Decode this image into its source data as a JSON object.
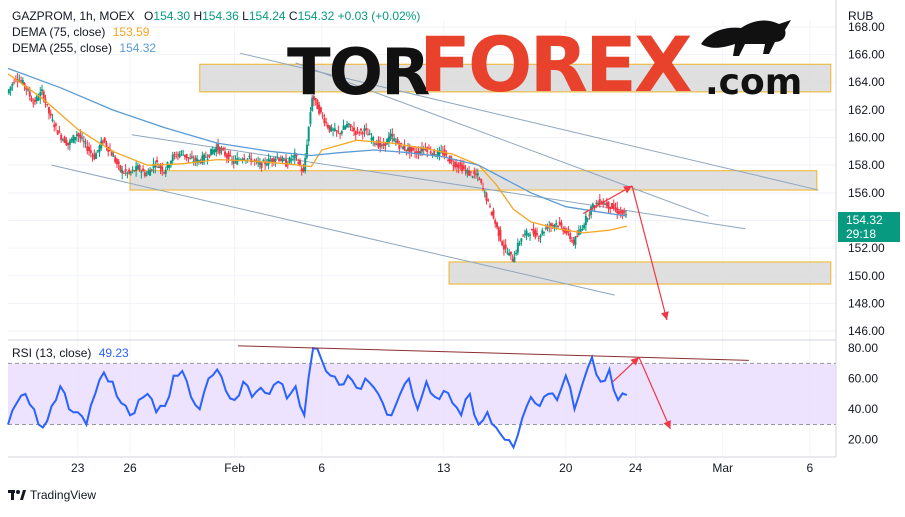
{
  "main_legend": {
    "symbol": "GAZPROM, 1h, MOEX",
    "o_label": "O",
    "o": "154.30",
    "h_label": "H",
    "h": "154.36",
    "l_label": "L",
    "l": "154.24",
    "c_label": "C",
    "c": "154.32",
    "change": "+0.03 (+0.02%)",
    "dema75_label": "DEMA (75, close)",
    "dema75": "153.59",
    "dema255_label": "DEMA (255, close)",
    "dema255": "154.32"
  },
  "rsi_legend": {
    "label": "RSI (13, close)",
    "value": "49.23"
  },
  "price_tag": {
    "price": "154.32",
    "countdown": "29:18"
  },
  "currency": "RUB",
  "watermark": "TORFOREX.com",
  "brand": "TradingView",
  "colors": {
    "up": "#089981",
    "down": "#f23645",
    "dema75": "#f5a623",
    "dema255": "#5b9bd5",
    "rsi": "#2962ff",
    "rsi_band": "#e9dcff",
    "zone": "#d9d9d9",
    "zone_border": "#f0b429",
    "trend": "#8fa6bd",
    "arrow": "#f23645"
  },
  "chart_data": [
    {
      "type": "line",
      "title": "",
      "ylim": [
        145.5,
        168.5
      ],
      "y_ticks": [
        146,
        148,
        150,
        152,
        154,
        156,
        158,
        160,
        162,
        164,
        166,
        168
      ],
      "y_tick_labels": [
        "146.00",
        "148.00",
        "150.00",
        "152.00",
        "154.00",
        "156.00",
        "158.00",
        "160.00",
        "162.00",
        "164.00",
        "166.00",
        "168.00"
      ],
      "x_ticks": [
        {
          "label": "23",
          "day": 4
        },
        {
          "label": "26",
          "day": 7
        },
        {
          "label": "Feb",
          "day": 13
        },
        {
          "label": "6",
          "day": 18
        },
        {
          "label": "13",
          "day": 25
        },
        {
          "label": "20",
          "day": 32
        },
        {
          "label": "24",
          "day": 36
        },
        {
          "label": "Mar",
          "day": 41
        },
        {
          "label": "6",
          "day": 46
        }
      ],
      "xlim": [
        0,
        47.5
      ],
      "price_path": [
        [
          0,
          163.2
        ],
        [
          0.5,
          164.4
        ],
        [
          1,
          163.8
        ],
        [
          1.5,
          162.5
        ],
        [
          2,
          163.3
        ],
        [
          2.5,
          161.4
        ],
        [
          3,
          160.2
        ],
        [
          3.5,
          159.5
        ],
        [
          4,
          160.3
        ],
        [
          4.5,
          159.4
        ],
        [
          5,
          158.6
        ],
        [
          5.5,
          159.8
        ],
        [
          6,
          158.8
        ],
        [
          6.5,
          157.6
        ],
        [
          7,
          157.4
        ],
        [
          7.5,
          157.8
        ],
        [
          8,
          157.3
        ],
        [
          8.5,
          158.2
        ],
        [
          9,
          157.6
        ],
        [
          9.5,
          158.6
        ],
        [
          10,
          158.9
        ],
        [
          10.5,
          158.4
        ],
        [
          11,
          158.3
        ],
        [
          11.5,
          158.7
        ],
        [
          12,
          159.3
        ],
        [
          12.5,
          158.8
        ],
        [
          13,
          158.2
        ],
        [
          13.5,
          158.6
        ],
        [
          14,
          158.4
        ],
        [
          14.5,
          158.0
        ],
        [
          15,
          158.3
        ],
        [
          15.5,
          158.6
        ],
        [
          16,
          158.1
        ],
        [
          16.5,
          158.7
        ],
        [
          17,
          157.4
        ],
        [
          17.5,
          163.0
        ],
        [
          18,
          161.7
        ],
        [
          18.5,
          160.6
        ],
        [
          19,
          160.3
        ],
        [
          19.5,
          160.9
        ],
        [
          20,
          160.4
        ],
        [
          20.5,
          160.5
        ],
        [
          21,
          159.8
        ],
        [
          21.5,
          159.3
        ],
        [
          22,
          160.1
        ],
        [
          22.5,
          159.4
        ],
        [
          23,
          159.1
        ],
        [
          23.5,
          158.9
        ],
        [
          24,
          159.3
        ],
        [
          24.5,
          158.8
        ],
        [
          25,
          158.9
        ],
        [
          25.5,
          158.2
        ],
        [
          26,
          157.9
        ],
        [
          26.5,
          157.4
        ],
        [
          27,
          157.2
        ],
        [
          27.5,
          155.6
        ],
        [
          28,
          153.8
        ],
        [
          28.5,
          152.0
        ],
        [
          29,
          151.2
        ],
        [
          29.5,
          152.8
        ],
        [
          30,
          153.2
        ],
        [
          30.5,
          152.9
        ],
        [
          31,
          153.6
        ],
        [
          31.5,
          153.8
        ],
        [
          32,
          153.3
        ],
        [
          32.5,
          152.4
        ],
        [
          33,
          153.6
        ],
        [
          33.5,
          154.9
        ],
        [
          34,
          155.4
        ],
        [
          34.5,
          155.1
        ],
        [
          35,
          154.7
        ],
        [
          35.5,
          154.32
        ]
      ],
      "series": [
        {
          "name": "DEMA (75, close)",
          "values": [
            [
              0,
              164.6
            ],
            [
              2,
              162.8
            ],
            [
              4,
              160.6
            ],
            [
              6,
              159.0
            ],
            [
              8,
              158.0
            ],
            [
              10,
              158.1
            ],
            [
              12,
              158.4
            ],
            [
              14,
              158.3
            ],
            [
              16,
              158.1
            ],
            [
              17.4,
              157.9
            ],
            [
              18,
              159.1
            ],
            [
              20,
              159.8
            ],
            [
              22,
              159.6
            ],
            [
              24,
              159.2
            ],
            [
              25.5,
              158.8
            ],
            [
              27,
              158.0
            ],
            [
              28,
              156.6
            ],
            [
              29,
              154.8
            ],
            [
              30,
              153.9
            ],
            [
              31.5,
              153.4
            ],
            [
              33,
              153.1
            ],
            [
              34.5,
              153.3
            ],
            [
              35.5,
              153.59
            ]
          ]
        },
        {
          "name": "DEMA (255, close)",
          "values": [
            [
              0,
              165.0
            ],
            [
              3,
              163.6
            ],
            [
              6,
              162.0
            ],
            [
              9,
              160.7
            ],
            [
              12,
              159.6
            ],
            [
              15,
              159.0
            ],
            [
              17.4,
              158.7
            ],
            [
              19,
              158.9
            ],
            [
              21,
              159.1
            ],
            [
              23,
              158.9
            ],
            [
              25,
              158.6
            ],
            [
              27,
              158.0
            ],
            [
              28.5,
              157.0
            ],
            [
              30,
              156.0
            ],
            [
              32,
              155.0
            ],
            [
              34,
              154.6
            ],
            [
              35.5,
              154.32
            ]
          ]
        }
      ],
      "zones": [
        {
          "x": [
            11,
            47.2
          ],
          "y": [
            163.3,
            165.3
          ]
        },
        {
          "x": [
            7,
            46.4
          ],
          "y": [
            156.2,
            157.6
          ]
        },
        {
          "x": [
            25.3,
            47.2
          ],
          "y": [
            149.4,
            151.0
          ]
        }
      ],
      "trend_lines": [
        [
          [
            2.5,
            158.0
          ],
          [
            34.8,
            148.6
          ]
        ],
        [
          [
            7.1,
            160.2
          ],
          [
            42.3,
            153.4
          ]
        ],
        [
          [
            13.3,
            166.1
          ],
          [
            46.5,
            156.2
          ]
        ],
        [
          [
            16.5,
            165.4
          ],
          [
            40.2,
            154.3
          ]
        ]
      ],
      "arrow_path": [
        [
          33.0,
          154.5
        ],
        [
          35.8,
          156.5
        ],
        [
          37.8,
          146.8
        ]
      ]
    },
    {
      "type": "line",
      "title": "",
      "ylim": [
        10,
        84
      ],
      "y_ticks": [
        20,
        40,
        60,
        80
      ],
      "y_tick_labels": [
        "20.00",
        "40.00",
        "60.00",
        "80.00"
      ],
      "band": [
        30,
        70
      ],
      "xlim": [
        0,
        47.5
      ],
      "series": [
        {
          "name": "RSI (13, close)",
          "values": [
            [
              0,
              30
            ],
            [
              0.5,
              44
            ],
            [
              1,
              50
            ],
            [
              1.5,
              40
            ],
            [
              2,
              28
            ],
            [
              2.5,
              42
            ],
            [
              3,
              55
            ],
            [
              3.5,
              40
            ],
            [
              4,
              38
            ],
            [
              4.5,
              30
            ],
            [
              5,
              50
            ],
            [
              5.5,
              64
            ],
            [
              6,
              58
            ],
            [
              6.5,
              44
            ],
            [
              7,
              36
            ],
            [
              7.5,
              46
            ],
            [
              8,
              50
            ],
            [
              8.5,
              38
            ],
            [
              9,
              42
            ],
            [
              9.5,
              62
            ],
            [
              10,
              65
            ],
            [
              10.5,
              48
            ],
            [
              11,
              40
            ],
            [
              11.5,
              60
            ],
            [
              12,
              66
            ],
            [
              12.5,
              52
            ],
            [
              13,
              46
            ],
            [
              13.5,
              58
            ],
            [
              14,
              48
            ],
            [
              14.5,
              54
            ],
            [
              15,
              50
            ],
            [
              15.5,
              58
            ],
            [
              16,
              47
            ],
            [
              16.5,
              55
            ],
            [
              17,
              36
            ],
            [
              17.5,
              80
            ],
            [
              18,
              72
            ],
            [
              18.5,
              62
            ],
            [
              19,
              56
            ],
            [
              19.5,
              62
            ],
            [
              20,
              54
            ],
            [
              20.5,
              60
            ],
            [
              21,
              54
            ],
            [
              21.5,
              44
            ],
            [
              22,
              36
            ],
            [
              22.5,
              50
            ],
            [
              23,
              60
            ],
            [
              23.5,
              40
            ],
            [
              24,
              58
            ],
            [
              24.5,
              48
            ],
            [
              25,
              52
            ],
            [
              25.5,
              44
            ],
            [
              26,
              36
            ],
            [
              26.5,
              50
            ],
            [
              27,
              30
            ],
            [
              27.5,
              38
            ],
            [
              28,
              28
            ],
            [
              28.5,
              20
            ],
            [
              29,
              15
            ],
            [
              29.5,
              34
            ],
            [
              30,
              48
            ],
            [
              30.5,
              42
            ],
            [
              31,
              50
            ],
            [
              31.5,
              46
            ],
            [
              32,
              62
            ],
            [
              32.5,
              40
            ],
            [
              33,
              58
            ],
            [
              33.5,
              74
            ],
            [
              34,
              58
            ],
            [
              34.5,
              66
            ],
            [
              35,
              46
            ],
            [
              35.5,
              49.23
            ]
          ]
        }
      ],
      "trend_line": [
        [
          13.2,
          81.5
        ],
        [
          42.5,
          72.0
        ]
      ],
      "arrow_path": [
        [
          34.7,
          58.0
        ],
        [
          36.2,
          74.0
        ],
        [
          38.0,
          27.0
        ]
      ]
    }
  ]
}
